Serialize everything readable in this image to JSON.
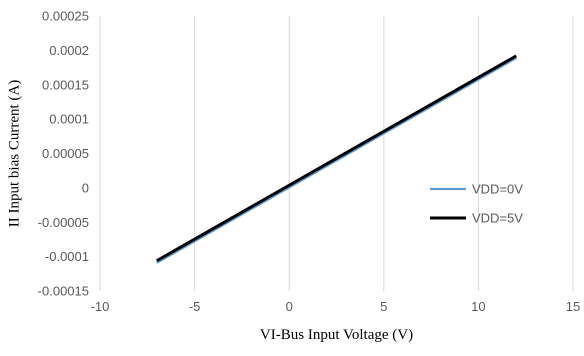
{
  "chart_data": {
    "type": "line",
    "title": "",
    "xlabel": "VI-Bus Input Voltage (V)",
    "ylabel": "II Input bias Current (A)",
    "xlim": [
      -10,
      15
    ],
    "ylim": [
      -0.00015,
      0.00025
    ],
    "x_ticks": [
      -10,
      -5,
      0,
      5,
      10,
      15
    ],
    "x_tick_labels": [
      "-10",
      "-5",
      "0",
      "5",
      "10",
      "15"
    ],
    "y_ticks": [
      -0.00015,
      -0.0001,
      -5e-05,
      0,
      5e-05,
      0.0001,
      0.00015,
      0.0002,
      0.00025
    ],
    "y_tick_labels": [
      "-0.00015",
      "-0.0001",
      "-0.00005",
      "0",
      "0.00005",
      "0.0001",
      "0.00015",
      "0.0002",
      "0.00025"
    ],
    "grid": "vertical",
    "legend_position": "right",
    "series": [
      {
        "name": "VDD=0V",
        "color": "#5B9BD5",
        "x": [
          -7,
          12
        ],
        "y": [
          -0.000109,
          0.000189
        ]
      },
      {
        "name": "VDD=5V",
        "color": "#000000",
        "x": [
          -7,
          12
        ],
        "y": [
          -0.000106,
          0.000192
        ]
      }
    ]
  }
}
